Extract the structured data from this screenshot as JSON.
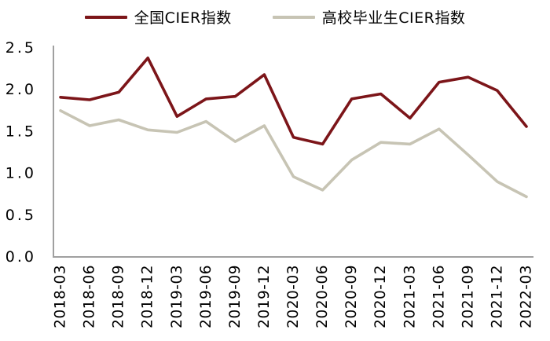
{
  "legend": {
    "items": [
      {
        "label": "全国CIER指数",
        "color": "#7c1519"
      },
      {
        "label": "高校毕业生CIER指数",
        "color": "#c7c4b4"
      }
    ]
  },
  "chart_data": {
    "type": "line",
    "x": [
      "2018-03",
      "2018-06",
      "2018-09",
      "2018-12",
      "2019-03",
      "2019-06",
      "2019-09",
      "2019-12",
      "2020-03",
      "2020-06",
      "2020-09",
      "2020-12",
      "2021-03",
      "2021-06",
      "2021-09",
      "2021-12",
      "2022-03"
    ],
    "series": [
      {
        "name": "全国CIER指数",
        "color": "#7c1519",
        "values": [
          1.91,
          1.88,
          1.97,
          2.38,
          1.68,
          1.89,
          1.92,
          2.18,
          1.43,
          1.35,
          1.89,
          1.95,
          1.66,
          2.09,
          2.15,
          1.99,
          1.56
        ]
      },
      {
        "name": "高校毕业生CIER指数",
        "color": "#c7c4b4",
        "values": [
          1.75,
          1.57,
          1.64,
          1.52,
          1.49,
          1.62,
          1.38,
          1.57,
          0.96,
          0.8,
          1.16,
          1.37,
          1.35,
          1.53,
          1.22,
          0.9,
          0.72
        ]
      }
    ],
    "title": "",
    "xlabel": "",
    "ylabel": "",
    "ylim": [
      0.0,
      2.5
    ],
    "yticks": [
      "0.0",
      "0.5",
      "1.0",
      "1.5",
      "2.0",
      "2.5"
    ],
    "grid": false,
    "legend_position": "top-center",
    "axis_color": "#a0a0a0",
    "text_color": "#000000",
    "line_width": 3.6
  }
}
